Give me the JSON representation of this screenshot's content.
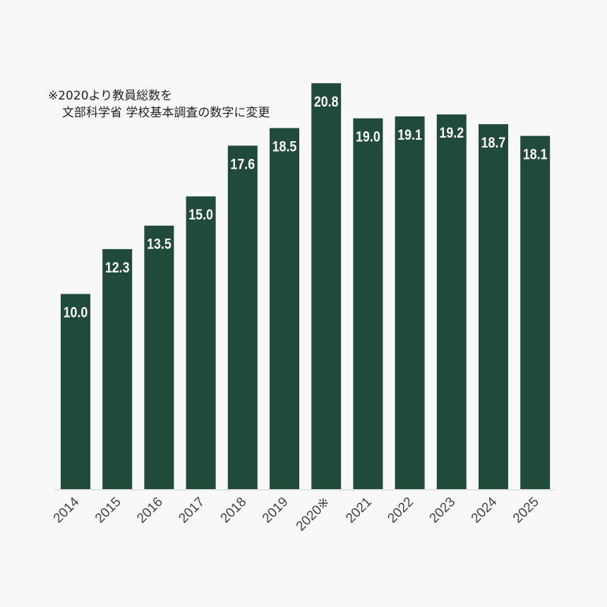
{
  "chart_data": {
    "type": "bar",
    "categories": [
      "2014",
      "2015",
      "2016",
      "2017",
      "2018",
      "2019",
      "2020※",
      "2021",
      "2022",
      "2023",
      "2024",
      "2025"
    ],
    "values": [
      10.0,
      12.3,
      13.5,
      15.0,
      17.6,
      18.5,
      20.8,
      19.0,
      19.1,
      19.2,
      18.7,
      18.1
    ],
    "ylim": [
      0,
      25
    ],
    "title": "",
    "xlabel": "",
    "ylabel": "",
    "grid": false,
    "bar_color": "#204b3a",
    "annotation": [
      "※2020より教員総数を",
      "文部科学省 学校基本調査の数字に変更"
    ]
  }
}
